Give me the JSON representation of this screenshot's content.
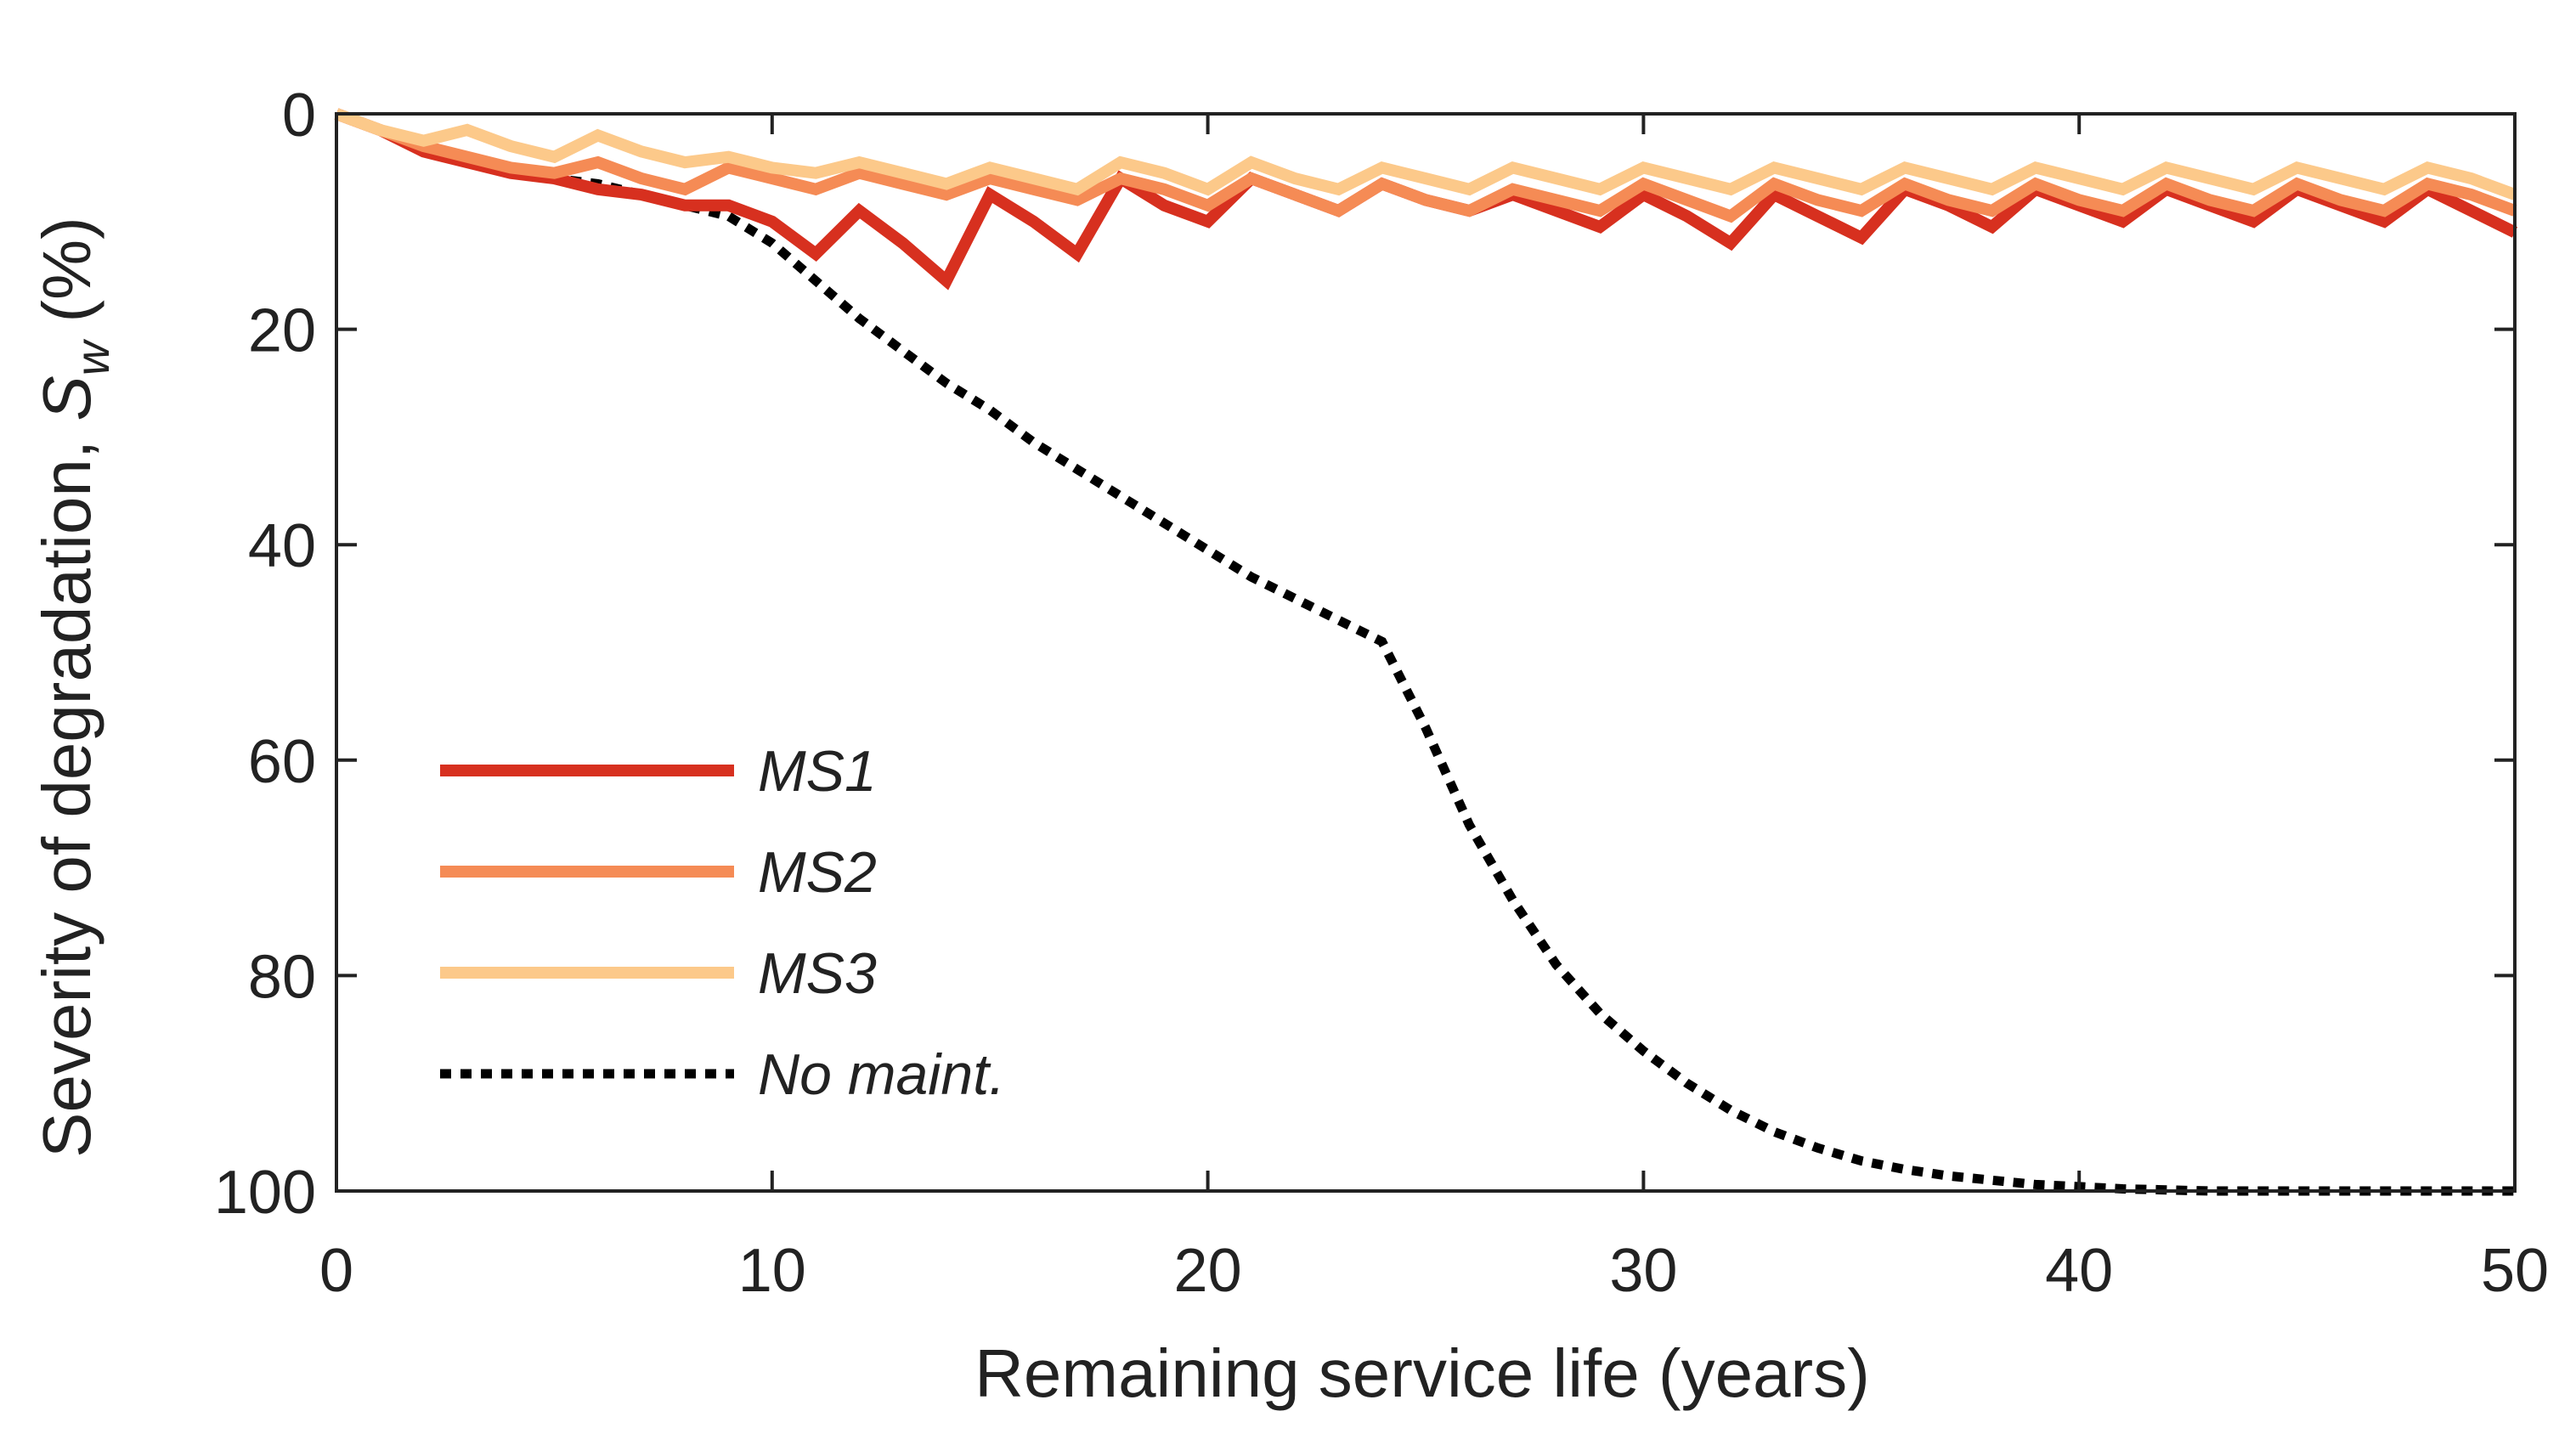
{
  "chart_data": {
    "type": "line",
    "xlabel": "Remaining service life (years)",
    "ylabel": "Severity of degradation,",
    "ylabel_symbol": "S",
    "ylabel_subscript": "w",
    "ylabel_unit": "(%)",
    "xlim": [
      0,
      50
    ],
    "ylim": [
      0,
      100
    ],
    "y_reversed": true,
    "xticks": [
      0,
      10,
      20,
      30,
      40,
      50
    ],
    "yticks": [
      0,
      20,
      40,
      60,
      80,
      100
    ],
    "xtick_labels": [
      "0",
      "10",
      "20",
      "30",
      "40",
      "50"
    ],
    "ytick_labels": [
      "0",
      "20",
      "40",
      "60",
      "80",
      "100"
    ],
    "legend_position": "lower-left",
    "series": [
      {
        "name": "MS1",
        "color": "#d7301f",
        "dash": "solid",
        "x": [
          0,
          1,
          2,
          3,
          4,
          5,
          6,
          7,
          8,
          9,
          10,
          11,
          12,
          13,
          14,
          15,
          16,
          17,
          18,
          19,
          20,
          21,
          22,
          23,
          24,
          25,
          26,
          27,
          28,
          29,
          30,
          31,
          32,
          33,
          34,
          35,
          36,
          37,
          38,
          39,
          40,
          41,
          42,
          43,
          44,
          45,
          46,
          47,
          48,
          49,
          50
        ],
        "y": [
          0,
          1.5,
          3.5,
          4.5,
          5.5,
          6,
          7,
          7.5,
          8.5,
          8.5,
          10,
          13,
          9,
          12,
          15.5,
          7.5,
          10,
          13,
          6,
          8.5,
          10,
          6,
          7.5,
          9,
          6.5,
          8,
          9,
          7.5,
          9,
          10.5,
          7.5,
          9.5,
          12,
          7.5,
          9.5,
          11.5,
          7,
          8.5,
          10.5,
          7,
          8.5,
          10,
          7,
          8.5,
          10,
          7,
          8.5,
          10,
          7,
          9,
          11
        ]
      },
      {
        "name": "MS2",
        "color": "#f58b55",
        "dash": "solid",
        "x": [
          0,
          1,
          2,
          3,
          4,
          5,
          6,
          7,
          8,
          9,
          10,
          11,
          12,
          13,
          14,
          15,
          16,
          17,
          18,
          19,
          20,
          21,
          22,
          23,
          24,
          25,
          26,
          27,
          28,
          29,
          30,
          31,
          32,
          33,
          34,
          35,
          36,
          37,
          38,
          39,
          40,
          41,
          42,
          43,
          44,
          45,
          46,
          47,
          48,
          49,
          50
        ],
        "y": [
          0,
          1.5,
          3,
          4,
          5,
          5.5,
          4.5,
          6,
          7,
          5,
          6,
          7,
          5.5,
          6.5,
          7.5,
          6,
          7,
          8,
          6,
          7,
          8.5,
          6,
          7.5,
          9,
          6.5,
          8,
          9,
          7,
          8,
          9,
          6.5,
          8,
          9.5,
          6.5,
          8,
          9,
          6.5,
          8,
          9,
          6.5,
          8,
          9,
          6.5,
          8,
          9,
          6.5,
          8,
          9,
          6.5,
          7.5,
          9
        ]
      },
      {
        "name": "MS3",
        "color": "#fcc98a",
        "dash": "solid",
        "x": [
          0,
          1,
          2,
          3,
          4,
          5,
          6,
          7,
          8,
          9,
          10,
          11,
          12,
          13,
          14,
          15,
          16,
          17,
          18,
          19,
          20,
          21,
          22,
          23,
          24,
          25,
          26,
          27,
          28,
          29,
          30,
          31,
          32,
          33,
          34,
          35,
          36,
          37,
          38,
          39,
          40,
          41,
          42,
          43,
          44,
          45,
          46,
          47,
          48,
          49,
          50
        ],
        "y": [
          0,
          1.5,
          2.5,
          1.5,
          3,
          4,
          2,
          3.5,
          4.5,
          4,
          5,
          5.5,
          4.5,
          5.5,
          6.5,
          5,
          6,
          7,
          4.5,
          5.5,
          7,
          4.5,
          6,
          7,
          5,
          6,
          7,
          5,
          6,
          7,
          5,
          6,
          7,
          5,
          6,
          7,
          5,
          6,
          7,
          5,
          6,
          7,
          5,
          6,
          7,
          5,
          6,
          7,
          5,
          6,
          7.5
        ]
      },
      {
        "name": "No maint.",
        "color": "#000000",
        "dash": "dotted",
        "x": [
          0,
          1,
          2,
          3,
          4,
          5,
          6,
          7,
          8,
          9,
          10,
          11,
          12,
          13,
          14,
          15,
          16,
          17,
          18,
          19,
          20,
          21,
          22,
          23,
          24,
          25,
          26,
          27,
          28,
          29,
          30,
          31,
          32,
          33,
          34,
          35,
          36,
          37,
          38,
          39,
          40,
          41,
          42,
          43,
          44,
          45,
          46,
          47,
          48,
          49,
          50
        ],
        "y": [
          0,
          1.5,
          3.5,
          4.5,
          5.5,
          6,
          6.5,
          7.5,
          8.5,
          9.5,
          12,
          15.5,
          19,
          22,
          25,
          27.5,
          30.5,
          33,
          35.5,
          38,
          40.5,
          43,
          45,
          47,
          49,
          57,
          66,
          73,
          79,
          83.5,
          87,
          90,
          92.5,
          94.5,
          96,
          97.2,
          98,
          98.6,
          99,
          99.4,
          99.6,
          99.8,
          99.9,
          100,
          100,
          100,
          100,
          100,
          100,
          100,
          100
        ]
      }
    ]
  }
}
